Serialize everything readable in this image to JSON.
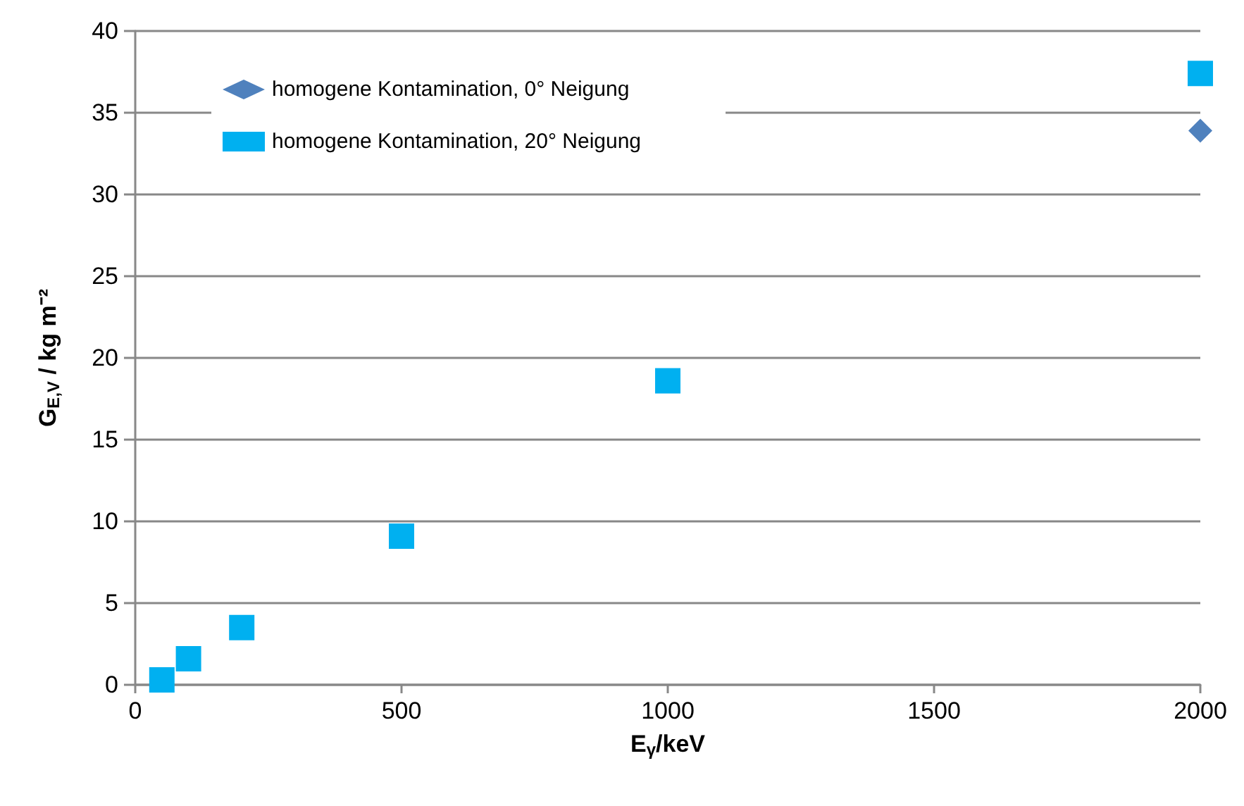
{
  "chart_data": {
    "type": "scatter",
    "xlabel": "E$_{γ}$/keV",
    "ylabel": "G$_{E,V}$ / kg m⁻²",
    "x": [
      50,
      100,
      200,
      500,
      1000,
      2000
    ],
    "series": [
      {
        "name": "homogene Kontamination, 0° Neigung",
        "color": "#4f81bd",
        "marker": "diamond",
        "values": [
          null,
          null,
          null,
          null,
          null,
          33.9
        ]
      },
      {
        "name": "homogene Kontamination, 20° Neigung",
        "color": "#00b0f0",
        "marker": "square",
        "values": [
          0.3,
          1.6,
          3.5,
          9.1,
          18.6,
          37.4
        ]
      }
    ],
    "xlim": [
      0,
      2000
    ],
    "xticks": [
      0,
      500,
      1000,
      1500,
      2000
    ],
    "ylim": [
      0,
      40
    ],
    "yticks": [
      0,
      5,
      10,
      15,
      20,
      25,
      30,
      35,
      40
    ],
    "grid": "y",
    "legend": "top left"
  }
}
